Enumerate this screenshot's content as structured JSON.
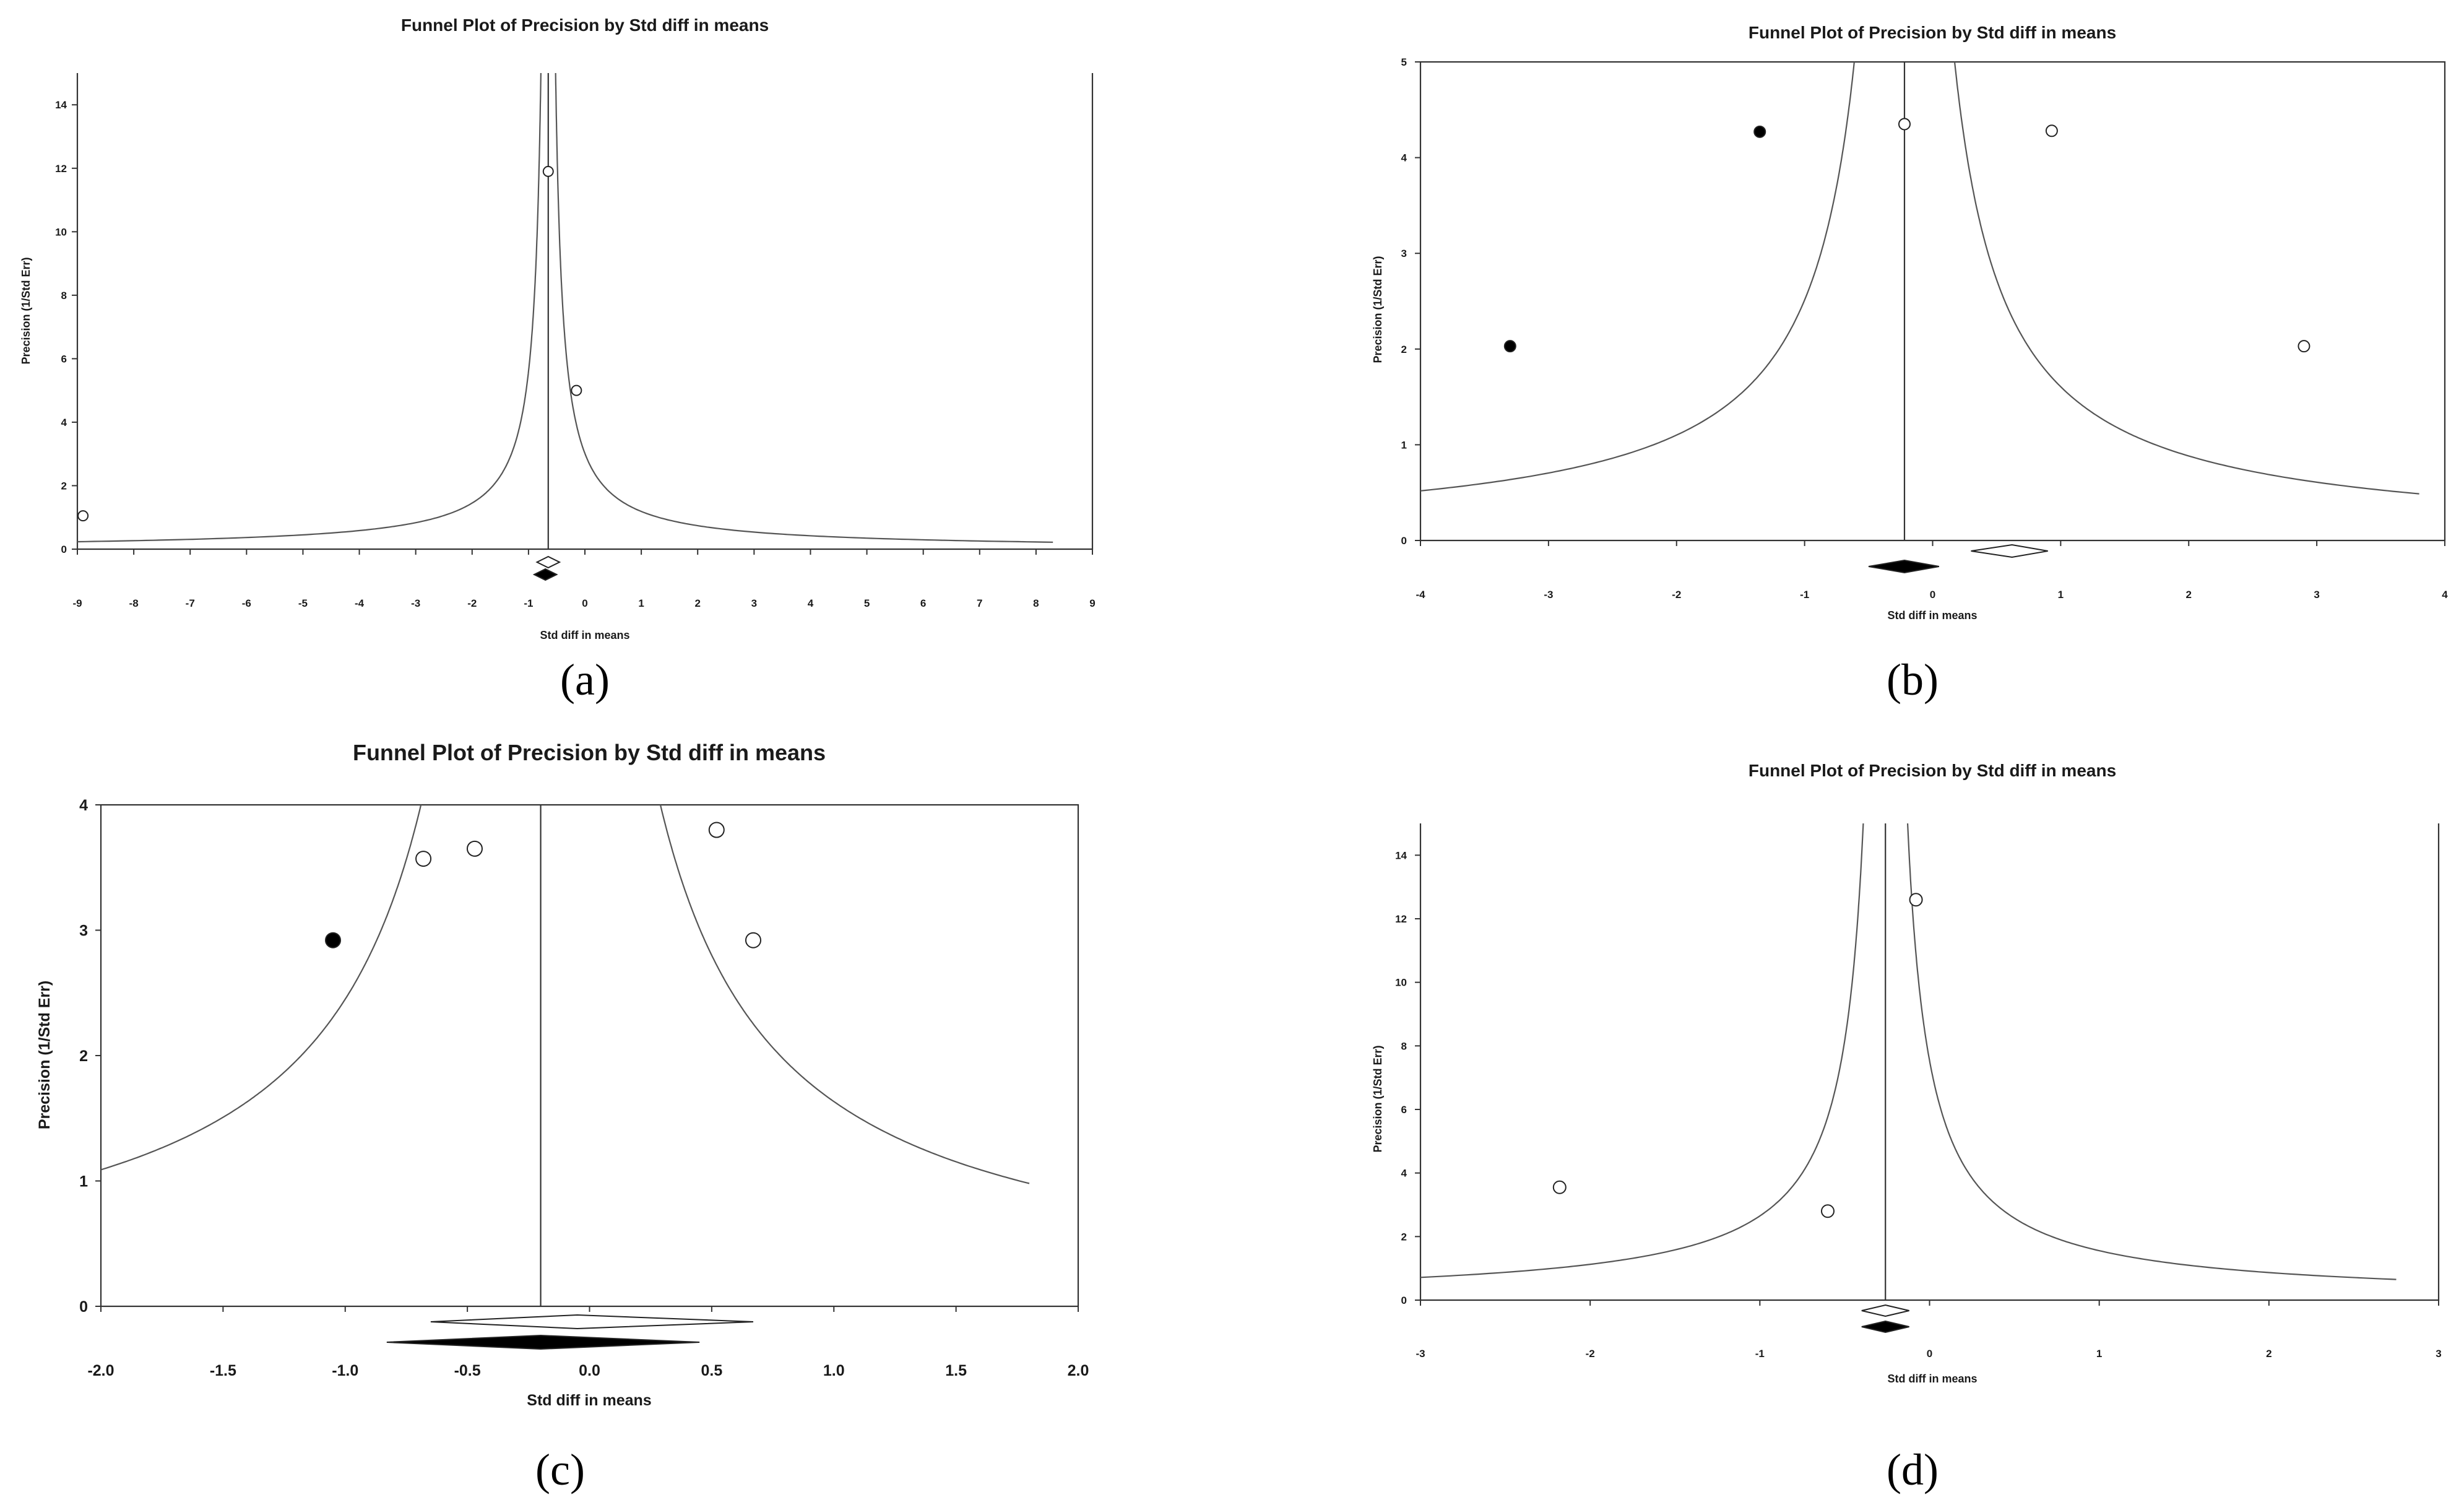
{
  "captions": [
    "(a)",
    "(b)",
    "(c)",
    "(d)"
  ],
  "chart_data": [
    {
      "type": "scatter",
      "title": "Funnel Plot of Precision by Std diff in means",
      "xlabel": "Std diff in means",
      "ylabel": "Precision (1/Std Err)",
      "xlim": [
        -9,
        9
      ],
      "ylim": [
        0,
        15
      ],
      "xticks": [
        -9,
        -8,
        -7,
        -6,
        -5,
        -4,
        -3,
        -2,
        -1,
        0,
        1,
        2,
        3,
        4,
        5,
        6,
        7,
        8,
        9
      ],
      "yticks": [
        0,
        2,
        4,
        6,
        8,
        10,
        12,
        14
      ],
      "mean_line_x": -0.65,
      "funnel_x_range": [
        -9,
        8.3
      ],
      "points": [
        {
          "x": -8.9,
          "y": 1.05,
          "filled": false
        },
        {
          "x": -0.65,
          "y": 11.9,
          "filled": false
        },
        {
          "x": -0.15,
          "y": 5.0,
          "filled": false
        }
      ],
      "diamonds": [
        {
          "center": -0.65,
          "low": -0.85,
          "high": -0.45,
          "filled": false
        },
        {
          "center": -0.7,
          "low": -0.9,
          "high": -0.5,
          "filled": true
        }
      ]
    },
    {
      "type": "scatter",
      "title": "Funnel Plot of Precision by Std diff in means",
      "xlabel": "Std diff in means",
      "ylabel": "Precision (1/Std Err)",
      "xlim": [
        -4,
        4
      ],
      "ylim": [
        0,
        5
      ],
      "xticks": [
        -4,
        -3,
        -2,
        -1,
        0,
        1,
        2,
        3,
        4
      ],
      "yticks": [
        0,
        1,
        2,
        3,
        4,
        5
      ],
      "mean_line_x": -0.22,
      "funnel_x_range": [
        -4,
        3.8
      ],
      "points": [
        {
          "x": -3.3,
          "y": 2.03,
          "filled": true
        },
        {
          "x": -1.35,
          "y": 4.27,
          "filled": true
        },
        {
          "x": -0.22,
          "y": 4.35,
          "filled": false
        },
        {
          "x": 0.93,
          "y": 4.28,
          "filled": false
        },
        {
          "x": 2.9,
          "y": 2.03,
          "filled": false
        }
      ],
      "diamonds": [
        {
          "center": 0.62,
          "low": 0.3,
          "high": 0.9,
          "filled": false
        },
        {
          "center": -0.22,
          "low": -0.5,
          "high": 0.05,
          "filled": true
        }
      ]
    },
    {
      "type": "scatter",
      "title": "Funnel Plot of Precision by Std diff in means",
      "xlabel": "Std diff in means",
      "ylabel": "Precision (1/Std Err)",
      "xlim": [
        -2,
        2
      ],
      "ylim": [
        0,
        4
      ],
      "xticks": [
        "-2.0",
        "-1.5",
        "-1.0",
        "-0.5",
        "0.0",
        "0.5",
        "1.0",
        "1.5",
        "2.0"
      ],
      "yticks": [
        0,
        1,
        2,
        3,
        4
      ],
      "mean_line_x": -0.2,
      "funnel_x_range": [
        -2,
        1.8
      ],
      "points": [
        {
          "x": -1.05,
          "y": 2.92,
          "filled": true
        },
        {
          "x": -0.68,
          "y": 3.57,
          "filled": false
        },
        {
          "x": -0.47,
          "y": 3.65,
          "filled": false
        },
        {
          "x": 0.52,
          "y": 3.8,
          "filled": false
        },
        {
          "x": 0.67,
          "y": 2.92,
          "filled": false
        }
      ],
      "diamonds": [
        {
          "center": -0.05,
          "low": -0.65,
          "high": 0.67,
          "filled": false
        },
        {
          "center": -0.2,
          "low": -0.83,
          "high": 0.45,
          "filled": true
        }
      ]
    },
    {
      "type": "scatter",
      "title": "Funnel Plot of Precision by Std diff in means",
      "xlabel": "Std diff in means",
      "ylabel": "Precision (1/Std Err)",
      "xlim": [
        -3,
        3
      ],
      "ylim": [
        0,
        15
      ],
      "xticks": [
        -3,
        -2,
        -1,
        0,
        1,
        2,
        3
      ],
      "yticks": [
        0,
        2,
        4,
        6,
        8,
        10,
        12,
        14
      ],
      "mean_line_x": -0.26,
      "funnel_x_range": [
        -3,
        2.75
      ],
      "points": [
        {
          "x": -2.18,
          "y": 3.55,
          "filled": false
        },
        {
          "x": -0.6,
          "y": 2.8,
          "filled": false
        },
        {
          "x": -0.08,
          "y": 12.6,
          "filled": false
        }
      ],
      "diamonds": [
        {
          "center": -0.26,
          "low": -0.4,
          "high": -0.12,
          "filled": false
        },
        {
          "center": -0.26,
          "low": -0.4,
          "high": -0.12,
          "filled": true
        }
      ]
    }
  ]
}
